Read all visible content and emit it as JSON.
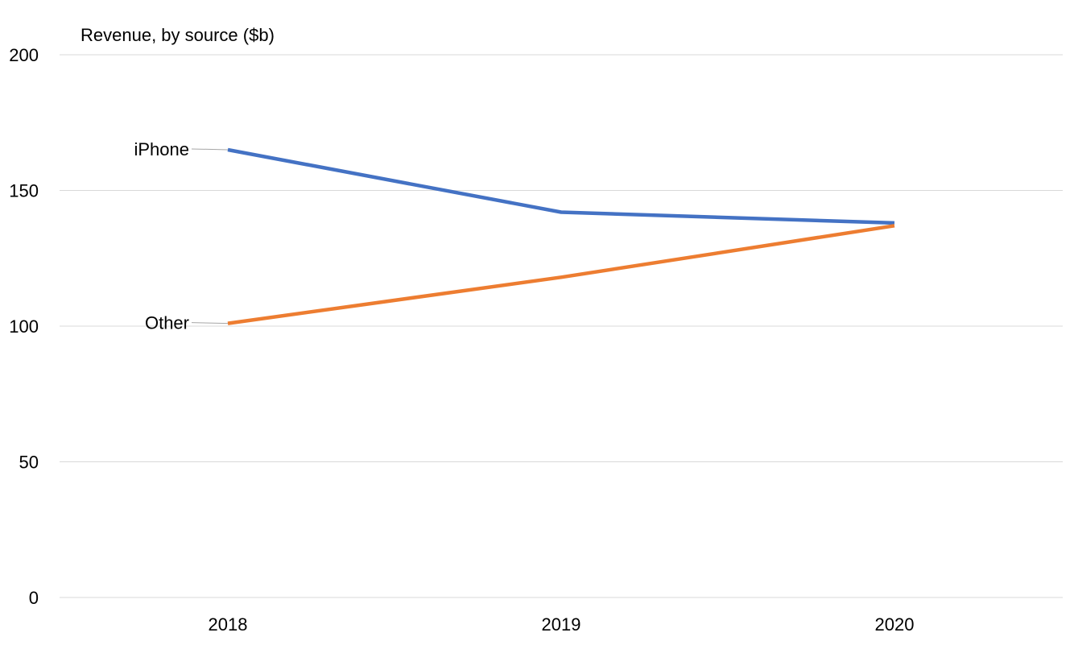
{
  "chart_data": {
    "type": "line",
    "title": "Revenue, by source ($b)",
    "categories": [
      "2018",
      "2019",
      "2020"
    ],
    "series": [
      {
        "name": "iPhone",
        "values": [
          165,
          142,
          138
        ],
        "color": "#4472c4"
      },
      {
        "name": "Other",
        "values": [
          101,
          118,
          137
        ],
        "color": "#ed7d31"
      }
    ],
    "ylim": [
      0,
      200
    ],
    "yticks": [
      0,
      50,
      100,
      150,
      200
    ],
    "grid": true,
    "legend": "none"
  }
}
